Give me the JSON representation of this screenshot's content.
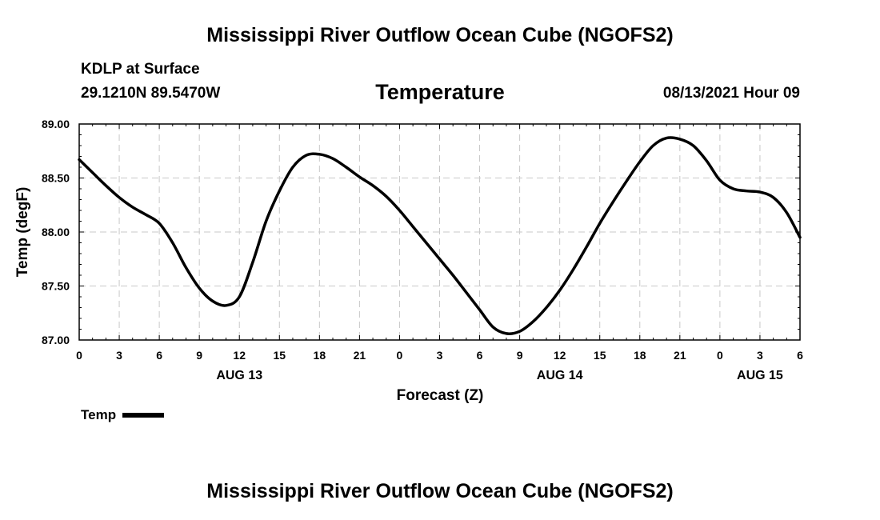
{
  "title_top": "Mississippi River Outflow Ocean Cube (NGOFS2)",
  "title_bottom": "Mississippi River Outflow Ocean Cube (NGOFS2)",
  "station": "KDLP at Surface",
  "coords": "29.1210N  89.5470W",
  "datetime": "08/13/2021 Hour 09",
  "chart_data": {
    "type": "line",
    "title": "Temperature",
    "xlabel": "Forecast (Z)",
    "ylabel": "Temp (degF)",
    "xlim": [
      0,
      54
    ],
    "ylim": [
      87.0,
      89.0
    ],
    "grid": true,
    "x_ticks": [
      0,
      3,
      6,
      9,
      12,
      15,
      18,
      21,
      24,
      27,
      30,
      33,
      36,
      39,
      42,
      45,
      48,
      51,
      54
    ],
    "x_tick_labels": [
      "0",
      "3",
      "6",
      "9",
      "12",
      "15",
      "18",
      "21",
      "0",
      "3",
      "6",
      "9",
      "12",
      "15",
      "18",
      "21",
      "0",
      "3",
      "6"
    ],
    "y_ticks": [
      87.0,
      87.5,
      88.0,
      88.5,
      89.0
    ],
    "y_tick_labels": [
      "87.00",
      "87.50",
      "88.00",
      "88.50",
      "89.00"
    ],
    "date_labels": [
      {
        "label": "AUG 13",
        "x": 12
      },
      {
        "label": "AUG 14",
        "x": 36
      },
      {
        "label": "AUG 15",
        "x": 51
      }
    ],
    "legend": {
      "label": "Temp",
      "placement": "bottom-left"
    },
    "series": [
      {
        "name": "Temp",
        "color": "#000000",
        "x": [
          0,
          1,
          2,
          3,
          4,
          5,
          6,
          7,
          8,
          9,
          10,
          11,
          12,
          13,
          14,
          15,
          16,
          17,
          18,
          19,
          20,
          21,
          22,
          23,
          24,
          25,
          26,
          27,
          28,
          29,
          30,
          31,
          32,
          33,
          34,
          35,
          36,
          37,
          38,
          39,
          40,
          41,
          42,
          43,
          44,
          45,
          46,
          47,
          48,
          49,
          50,
          51,
          52,
          53,
          54
        ],
        "values": [
          88.67,
          88.55,
          88.43,
          88.32,
          88.23,
          88.16,
          88.08,
          87.9,
          87.67,
          87.48,
          87.36,
          87.32,
          87.4,
          87.72,
          88.1,
          88.38,
          88.6,
          88.71,
          88.72,
          88.68,
          88.6,
          88.51,
          88.43,
          88.33,
          88.2,
          88.05,
          87.9,
          87.75,
          87.6,
          87.44,
          87.28,
          87.12,
          87.06,
          87.08,
          87.17,
          87.3,
          87.46,
          87.65,
          87.86,
          88.08,
          88.28,
          88.47,
          88.65,
          88.8,
          88.87,
          88.86,
          88.8,
          88.66,
          88.48,
          88.4,
          88.38,
          88.37,
          88.32,
          88.18,
          87.95
        ]
      }
    ]
  }
}
